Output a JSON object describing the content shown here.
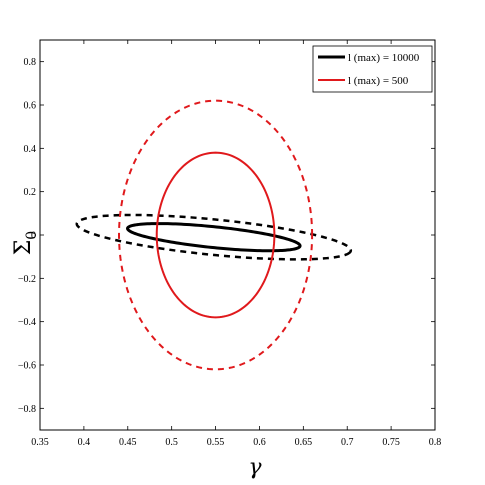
{
  "chart_data": {
    "type": "line",
    "xlabel": "γ",
    "ylabel": "Σ",
    "ylabel_sub": "0",
    "xlim": [
      0.35,
      0.8
    ],
    "ylim": [
      -0.9,
      0.9
    ],
    "xticks": [
      0.35,
      0.4,
      0.45,
      0.5,
      0.55,
      0.6,
      0.65,
      0.7,
      0.75,
      0.8
    ],
    "yticks": [
      -0.8,
      -0.6,
      -0.4,
      -0.2,
      0,
      0.2,
      0.4,
      0.6,
      0.8
    ],
    "xtick_labels": [
      "0.35",
      "0.4",
      "0.45",
      "0.5",
      "0.55",
      "0.6",
      "0.65",
      "0.7",
      "0.75",
      "0.8"
    ],
    "ytick_labels": [
      "−0.8",
      "−0.6",
      "−0.4",
      "−0.2",
      "0",
      "0.2",
      "0.4",
      "0.6",
      "0.8"
    ],
    "legend_position": "top-right",
    "legend": [
      {
        "label": "l (max) = 10000",
        "color": "#000000"
      },
      {
        "label": "l (max) = 500",
        "color": "#e0191c"
      }
    ],
    "series": [
      {
        "legend_index": 0,
        "color": "#000000",
        "dash": "solid",
        "center": [
          0.548,
          -0.01
        ],
        "semi_major": 0.108,
        "semi_minor": 0.044,
        "angle_deg": -27
      },
      {
        "legend_index": 0,
        "color": "#000000",
        "dash": "dashed",
        "center": [
          0.548,
          -0.01
        ],
        "semi_major": 0.171,
        "semi_minor": 0.075,
        "angle_deg": -27
      },
      {
        "legend_index": 1,
        "color": "#e0191c",
        "dash": "solid",
        "center": [
          0.55,
          0.0
        ],
        "semi_x": 0.067,
        "semi_y": 0.38,
        "angle_deg": 0
      },
      {
        "legend_index": 1,
        "color": "#e0191c",
        "dash": "dashed",
        "center": [
          0.55,
          0.0
        ],
        "semi_x": 0.11,
        "semi_y": 0.62,
        "angle_deg": 0
      }
    ]
  }
}
